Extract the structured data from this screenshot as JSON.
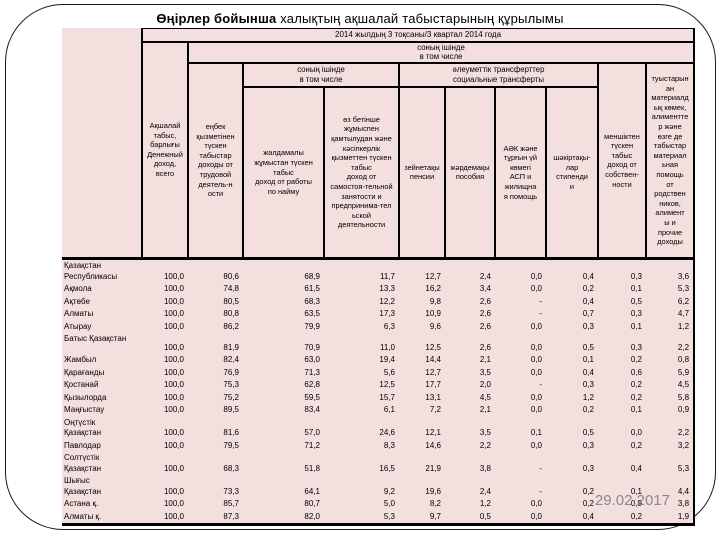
{
  "title": {
    "bold": "Өңірлер бойынша",
    "rest": " халықтың ақшалай табыстарының құрылымы"
  },
  "date": "29.02.2017",
  "table": {
    "header": {
      "period": "2014 жылдың 3 тоқсаны/3 квартал 2014 года",
      "including_top": "соның ішінде\nв том числе",
      "money_income": "Ақшалай\nтабыс,\nбарлығы\nДенежный\nдоход,\nвсего",
      "labor_income": "еңбек\nқызметінен\nтүскен\nтабыстар\nдоходы от\nтрудовой\nдеятель-н\nости",
      "including_sub": "соның ішінде\nв том числе",
      "social_transfers": "әлеуметтік трансферттер\nсоциальные трансферты",
      "hired_work": "жалдамалы\nжұмыстан түскен\nтабыс\nдоход от работы\nпо найму",
      "self_employment": "өз бетінше\nжұмыспен\nқамтылудан және\nкәсіпкерлік\nқызметтен түскен\nтабыс\nдоход от\nсамостоя-тельной\nзанятости и\nпредпринима-тел\nьской\nдеятельности",
      "pensions": "зейнетақы\nпенсии",
      "benefits": "жәрдемақы\nпособия",
      "asp": "АӘК және\nтұрғын үй\nкөмегі\nАСП и\nжилищна\nя помощь",
      "stipends": "шәкіртақы-\nлар\nстипенди\nи",
      "property": "меншіктен\nтүскен\nтабыс\nдоход от\nсобствен-\nности",
      "relatives": "туыстарын\nан\nматериалд\nық көмек,\nалиментте\nр және\nөзге де\nтабыстар\nматериал\nьная\nпомощь\nот\nродствен\nников,\nалимент\nы и\nпрочие\nдоходы"
    },
    "rows": [
      {
        "region": "Қазақстан\nРеспубликасы",
        "tall": true,
        "values": [
          "100,0",
          "80,6",
          "68,9",
          "11,7",
          "12,7",
          "2,4",
          "0,0",
          "0,4",
          "0,3",
          "3,6"
        ]
      },
      {
        "region": "Ақмола",
        "tall": false,
        "values": [
          "100,0",
          "74,8",
          "61,5",
          "13,3",
          "16,2",
          "3,4",
          "0,0",
          "0,2",
          "0,1",
          "5,3"
        ]
      },
      {
        "region": "Ақтөбе",
        "tall": false,
        "values": [
          "100,0",
          "80,5",
          "68,3",
          "12,2",
          "9,8",
          "2,6",
          "-",
          "0,4",
          "0,5",
          "6,2"
        ]
      },
      {
        "region": "Алматы",
        "tall": false,
        "values": [
          "100,0",
          "80,8",
          "63,5",
          "17,3",
          "10,9",
          "2,6",
          "-",
          "0,7",
          "0,3",
          "4,7"
        ]
      },
      {
        "region": "Атырау",
        "tall": false,
        "values": [
          "100,0",
          "86,2",
          "79,9",
          "6,3",
          "9,6",
          "2,6",
          "0,0",
          "0,3",
          "0,1",
          "1,2"
        ]
      },
      {
        "region": "Батыс Қазақстан",
        "tall": true,
        "values": [
          "100,0",
          "81,9",
          "70,9",
          "11,0",
          "12,5",
          "2,6",
          "0,0",
          "0,5",
          "0,3",
          "2,2"
        ]
      },
      {
        "region": "Жамбыл",
        "tall": false,
        "values": [
          "100,0",
          "82,4",
          "63,0",
          "19,4",
          "14,4",
          "2,1",
          "0,0",
          "0,1",
          "0,2",
          "0,8"
        ]
      },
      {
        "region": "Қарағанды",
        "tall": false,
        "values": [
          "100,0",
          "76,9",
          "71,3",
          "5,6",
          "12,7",
          "3,5",
          "0,0",
          "0,4",
          "0,6",
          "5,9"
        ]
      },
      {
        "region": "Қостанай",
        "tall": false,
        "values": [
          "100,0",
          "75,3",
          "62,8",
          "12,5",
          "17,7",
          "2,0",
          "-",
          "0,3",
          "0,2",
          "4,5"
        ]
      },
      {
        "region": "Қызылорда",
        "tall": false,
        "values": [
          "100,0",
          "75,2",
          "59,5",
          "15,7",
          "13,1",
          "4,5",
          "0,0",
          "1,2",
          "0,2",
          "5,8"
        ]
      },
      {
        "region": "Маңғыстау",
        "tall": false,
        "values": [
          "100,0",
          "89,5",
          "83,4",
          "6,1",
          "7,2",
          "2,1",
          "0,0",
          "0,2",
          "0,1",
          "0,9"
        ]
      },
      {
        "region": "Оңтүстік\nҚазақстан",
        "tall": true,
        "values": [
          "100,0",
          "81,6",
          "57,0",
          "24,6",
          "12,1",
          "3,5",
          "0,1",
          "0,5",
          "0,0",
          "2,2"
        ]
      },
      {
        "region": "Павлодар",
        "tall": false,
        "values": [
          "100,0",
          "79,5",
          "71,2",
          "8,3",
          "14,6",
          "2,2",
          "0,0",
          "0,3",
          "0,2",
          "3,2"
        ]
      },
      {
        "region": "Солтүстік\nҚазақстан",
        "tall": true,
        "values": [
          "100,0",
          "68,3",
          "51,8",
          "16,5",
          "21,9",
          "3,8",
          "-",
          "0,3",
          "0,4",
          "5,3"
        ]
      },
      {
        "region": "Шығыс\nҚазақстан",
        "tall": true,
        "values": [
          "100,0",
          "73,3",
          "64,1",
          "9,2",
          "19,6",
          "2,4",
          "-",
          "0,2",
          "0,1",
          "4,4"
        ]
      },
      {
        "region": "Астана қ.",
        "tall": false,
        "values": [
          "100,0",
          "85,7",
          "80,7",
          "5,0",
          "8,2",
          "1,2",
          "0,0",
          "0,2",
          "0,9",
          "3,8"
        ]
      },
      {
        "region": "Алматы қ.",
        "tall": false,
        "values": [
          "100,0",
          "87,3",
          "82,0",
          "5,3",
          "9,7",
          "0,5",
          "0,0",
          "0,4",
          "0,2",
          "1,9"
        ]
      }
    ]
  }
}
